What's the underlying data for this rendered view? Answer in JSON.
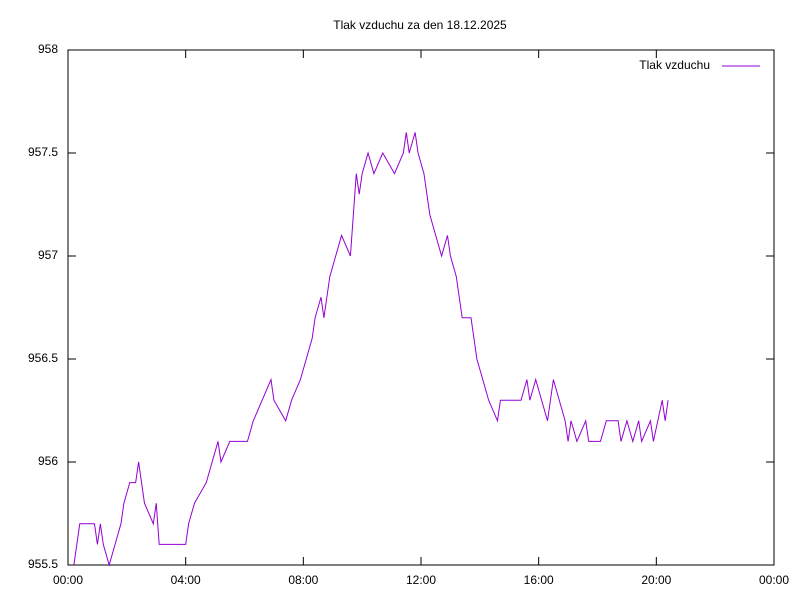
{
  "chart_data": {
    "type": "line",
    "title": "Tlak vzduchu za den 18.12.2025",
    "xlim": [
      0,
      24
    ],
    "xticks": [
      {
        "value": 0,
        "label": "00:00"
      },
      {
        "value": 4,
        "label": "04:00"
      },
      {
        "value": 8,
        "label": "08:00"
      },
      {
        "value": 12,
        "label": "12:00"
      },
      {
        "value": 16,
        "label": "16:00"
      },
      {
        "value": 20,
        "label": "20:00"
      },
      {
        "value": 24,
        "label": "00:00"
      }
    ],
    "ylim": [
      955.5,
      958
    ],
    "yticks": [
      955.5,
      956,
      956.5,
      957,
      957.5,
      958
    ],
    "grid": false,
    "legend": "top-right",
    "series": [
      {
        "name": "Tlak vzduchu",
        "color": "#9400d3",
        "x": [
          0.2,
          0.3,
          0.4,
          0.9,
          1.0,
          1.1,
          1.2,
          1.4,
          1.6,
          1.8,
          1.9,
          2.1,
          2.3,
          2.4,
          2.5,
          2.6,
          2.9,
          3.0,
          3.1,
          4.0,
          4.1,
          4.3,
          4.7,
          4.9,
          5.1,
          5.2,
          5.5,
          6.1,
          6.3,
          6.6,
          6.9,
          7.0,
          7.4,
          7.6,
          7.9,
          8.1,
          8.3,
          8.4,
          8.6,
          8.7,
          8.9,
          9.1,
          9.3,
          9.6,
          9.7,
          9.8,
          9.9,
          10.0,
          10.2,
          10.4,
          10.7,
          11.1,
          11.4,
          11.5,
          11.6,
          11.8,
          11.9,
          12.1,
          12.2,
          12.3,
          12.5,
          12.7,
          12.9,
          13.0,
          13.2,
          13.4,
          13.7,
          13.8,
          13.9,
          14.1,
          14.3,
          14.6,
          14.7,
          15.4,
          15.6,
          15.7,
          15.9,
          16.1,
          16.3,
          16.5,
          16.7,
          16.9,
          17.0,
          17.1,
          17.3,
          17.6,
          17.7,
          18.1,
          18.3,
          18.7,
          18.8,
          19.0,
          19.2,
          19.4,
          19.5,
          19.8,
          19.9,
          20.2,
          20.3,
          20.4
        ],
        "values": [
          955.5,
          955.6,
          955.7,
          955.7,
          955.6,
          955.7,
          955.6,
          955.5,
          955.6,
          955.7,
          955.8,
          955.9,
          955.9,
          956.0,
          955.9,
          955.8,
          955.7,
          955.8,
          955.6,
          955.6,
          955.7,
          955.8,
          955.9,
          956.0,
          956.1,
          956.0,
          956.1,
          956.1,
          956.2,
          956.3,
          956.4,
          956.3,
          956.2,
          956.3,
          956.4,
          956.5,
          956.6,
          956.7,
          956.8,
          956.7,
          956.9,
          957.0,
          957.1,
          957.0,
          957.2,
          957.4,
          957.3,
          957.4,
          957.5,
          957.4,
          957.5,
          957.4,
          957.5,
          957.6,
          957.5,
          957.6,
          957.5,
          957.4,
          957.3,
          957.2,
          957.1,
          957.0,
          957.1,
          957.0,
          956.9,
          956.7,
          956.7,
          956.6,
          956.5,
          956.4,
          956.3,
          956.2,
          956.3,
          956.3,
          956.4,
          956.3,
          956.4,
          956.3,
          956.2,
          956.4,
          956.3,
          956.2,
          956.1,
          956.2,
          956.1,
          956.2,
          956.1,
          956.1,
          956.2,
          956.2,
          956.1,
          956.2,
          956.1,
          956.2,
          956.1,
          956.2,
          956.1,
          956.3,
          956.2,
          956.3
        ]
      }
    ]
  }
}
